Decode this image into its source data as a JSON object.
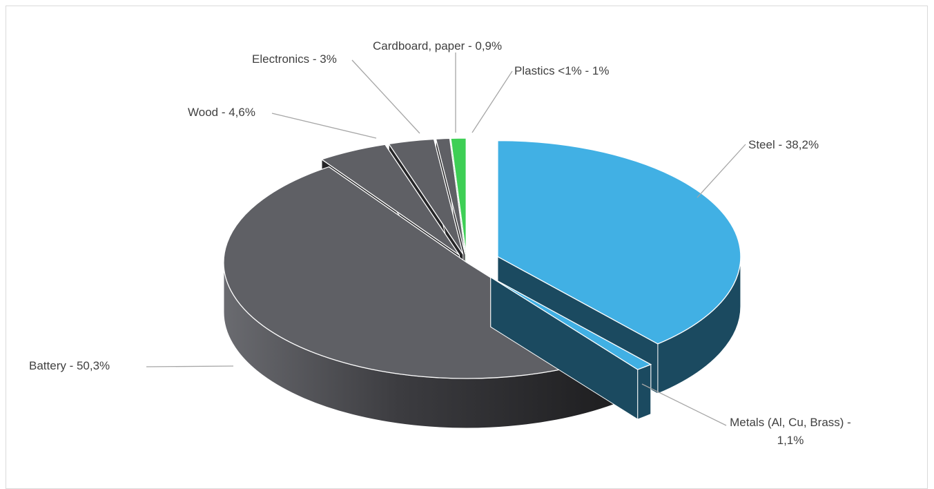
{
  "chart_data": {
    "type": "pie",
    "variant": "3d-exploded",
    "title": "",
    "slices": [
      {
        "label": "Steel",
        "value": 38.2,
        "label_text": "Steel - 38,2%",
        "color": "#41b0e4",
        "side_color": "#1b4a60"
      },
      {
        "label": "Metals (Al, Cu, Brass)",
        "value": 1.1,
        "label_text": "Metals (Al, Cu, Brass) -",
        "label_text2": "1,1%",
        "color": "#41b0e4",
        "side_color": "#1b4a60"
      },
      {
        "label": "Battery",
        "value": 50.3,
        "label_text": "Battery - 50,3%",
        "color": "#5f6065",
        "side_color": "#2a2a2d"
      },
      {
        "label": "Wood",
        "value": 4.6,
        "label_text": "Wood - 4,6%",
        "color": "#5f6065",
        "side_color": "#262628"
      },
      {
        "label": "Electronics",
        "value": 3,
        "label_text": "Electronics - 3%",
        "color": "#5f6065",
        "side_color": "#262628"
      },
      {
        "label": "Cardboard, paper",
        "value": 0.9,
        "label_text": "Cardboard, paper - 0,9%",
        "color": "#5f6065",
        "side_color": "#262628"
      },
      {
        "label": "Plastics <1%",
        "value": 1,
        "label_text": "Plastics <1% - 1%",
        "color": "#3ecf55",
        "side_color": "#1f7a2e"
      }
    ],
    "legend": "none",
    "data_labels": "outside-with-leader-lines"
  }
}
